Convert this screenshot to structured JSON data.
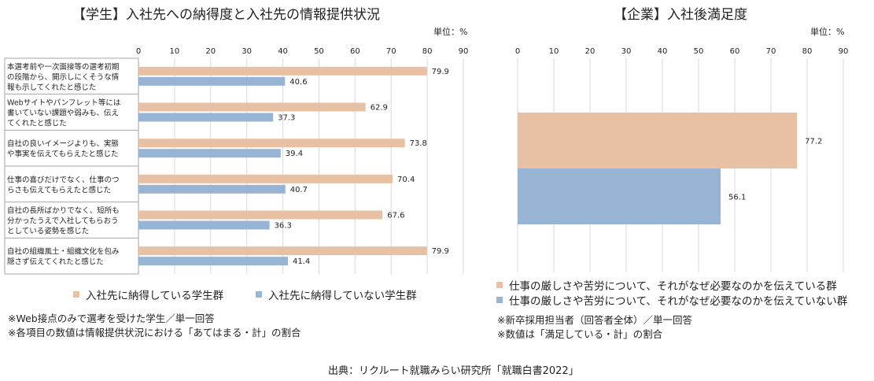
{
  "left_chart": {
    "title": "【学生】入社先への納得度と入社先の情報提供状況",
    "unit_label": "単位：%",
    "legend": [
      "入社先に納得している学生群",
      "入社先に納得していない学生群"
    ],
    "notes": [
      "※Web接点のみで選考を受けた学生／単一回答",
      "※各項目の数値は情報提供状況における「あてはまる・計」の割合"
    ]
  },
  "right_chart": {
    "title": "【企業】入社後満足度",
    "unit_label": "単位：%",
    "legend": [
      "仕事の厳しさや苦労について、それがなぜ必要なのかを伝えている群",
      "仕事の厳しさや苦労について、それがなぜ必要なのかを伝えていない群"
    ],
    "notes": [
      "※新卒採用担当者（回答者全体）／単一回答",
      "※数値は「満足している・計」の割合"
    ]
  },
  "source": "出典：リクルート就職みらい研究所「就職白書2022」",
  "colors": {
    "series1": "#e8c0a3",
    "series2": "#98b4d4",
    "grid": "#d9d9d9",
    "label_border": "#a6a6a6"
  },
  "chart_data": [
    {
      "type": "bar",
      "orientation": "horizontal",
      "categories": [
        [
          "本選考前や一次面接等の選考初期",
          "の段階から、開示しにくそうな情",
          "報も示してくれたと感じた"
        ],
        [
          "Webサイトやパンフレット等には",
          "書いていない課題や弱みも、伝え",
          "てくれたと感じた"
        ],
        [
          "自社の良いイメージよりも、実態",
          "や事実を伝えてもらえたと感じた"
        ],
        [
          "仕事の喜びだけでなく、仕事のつ",
          "らさも伝えてもらえたと感じた"
        ],
        [
          "自社の長所ばかりでなく、短所も",
          "分かったうえで入社してもらおう",
          "としている姿勢を感じた"
        ],
        [
          "自社の組織風土・組織文化を包み",
          "隠さず伝えてくれたと感じた"
        ]
      ],
      "series": [
        {
          "name": "入社先に納得している学生群",
          "values": [
            79.9,
            62.9,
            73.8,
            70.4,
            67.6,
            79.9
          ]
        },
        {
          "name": "入社先に納得していない学生群",
          "values": [
            40.6,
            37.3,
            39.4,
            40.7,
            36.3,
            41.4
          ]
        }
      ],
      "xlim": [
        0,
        90
      ],
      "ticks": [
        0,
        10,
        20,
        30,
        40,
        50,
        60,
        70,
        80,
        90
      ],
      "grid": true,
      "legend_position": "bottom"
    },
    {
      "type": "bar",
      "orientation": "horizontal",
      "categories": [
        ""
      ],
      "series": [
        {
          "name": "仕事の厳しさや苦労について、それがなぜ必要なのかを伝えている群",
          "values": [
            77.2
          ]
        },
        {
          "name": "仕事の厳しさや苦労について、それがなぜ必要なのかを伝えていない群",
          "values": [
            56.1
          ]
        }
      ],
      "xlim": [
        0,
        90
      ],
      "ticks": [
        0,
        10,
        20,
        30,
        40,
        50,
        60,
        70,
        80,
        90
      ],
      "grid": true,
      "legend_position": "bottom"
    }
  ]
}
